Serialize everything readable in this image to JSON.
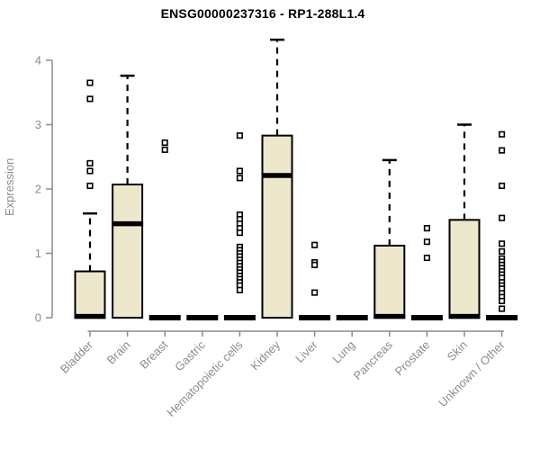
{
  "chart_data": {
    "type": "boxplot",
    "title": "ENSG00000237316 - RP1-288L1.4",
    "xlabel": "",
    "ylabel": "Expression",
    "ylim": [
      0,
      4.35
    ],
    "yticks": [
      0,
      1,
      2,
      3,
      4
    ],
    "grid": false,
    "legend": "none",
    "categories": [
      "Bladder",
      "Brain",
      "Breast",
      "Gastric",
      "Hematopoietic cells",
      "Kidney",
      "Liver",
      "Lung",
      "Pancreas",
      "Prostate",
      "Skin",
      "Unknown / Other"
    ],
    "series": [
      {
        "category": "Bladder",
        "q1": 0,
        "median": 0.02,
        "q3": 0.72,
        "whisker_low": 0,
        "whisker_high": 1.62,
        "outliers": [
          2.05,
          2.28,
          2.4,
          3.4,
          3.65
        ]
      },
      {
        "category": "Brain",
        "q1": 0,
        "median": 1.46,
        "q3": 2.07,
        "whisker_low": 0,
        "whisker_high": 3.76,
        "outliers": []
      },
      {
        "category": "Breast",
        "q1": 0,
        "median": 0,
        "q3": 0,
        "whisker_low": 0,
        "whisker_high": 0,
        "outliers": [
          2.61,
          2.72
        ]
      },
      {
        "category": "Gastric",
        "q1": 0,
        "median": 0,
        "q3": 0,
        "whisker_low": 0,
        "whisker_high": 0,
        "outliers": []
      },
      {
        "category": "Hematopoietic cells",
        "q1": 0,
        "median": 0,
        "q3": 0,
        "whisker_low": 0,
        "whisker_high": 0,
        "outliers": [
          2.83,
          2.28,
          2.17,
          1.6,
          1.53,
          1.46,
          1.39,
          1.32,
          1.1,
          1.05,
          1.0,
          0.95,
          0.9,
          0.85,
          0.8,
          0.75,
          0.7,
          0.65,
          0.6,
          0.55,
          0.5,
          0.43
        ]
      },
      {
        "category": "Kidney",
        "q1": 0,
        "median": 2.21,
        "q3": 2.83,
        "whisker_low": 0,
        "whisker_high": 4.32,
        "outliers": []
      },
      {
        "category": "Liver",
        "q1": 0,
        "median": 0,
        "q3": 0,
        "whisker_low": 0,
        "whisker_high": 0,
        "outliers": [
          1.13,
          0.86,
          0.82,
          0.39
        ]
      },
      {
        "category": "Lung",
        "q1": 0,
        "median": 0,
        "q3": 0,
        "whisker_low": 0,
        "whisker_high": 0,
        "outliers": []
      },
      {
        "category": "Pancreas",
        "q1": 0,
        "median": 0.02,
        "q3": 1.12,
        "whisker_low": 0,
        "whisker_high": 2.45,
        "outliers": []
      },
      {
        "category": "Prostate",
        "q1": 0,
        "median": 0,
        "q3": 0,
        "whisker_low": 0,
        "whisker_high": 0,
        "outliers": [
          1.39,
          1.18,
          0.93
        ]
      },
      {
        "category": "Skin",
        "q1": 0,
        "median": 0.02,
        "q3": 1.52,
        "whisker_low": 0,
        "whisker_high": 3.0,
        "outliers": []
      },
      {
        "category": "Unknown / Other",
        "q1": 0,
        "median": 0,
        "q3": 0,
        "whisker_low": 0,
        "whisker_high": 0,
        "outliers": [
          2.85,
          2.6,
          2.05,
          1.55,
          1.15,
          1.03,
          0.92,
          0.87,
          0.82,
          0.77,
          0.72,
          0.67,
          0.62,
          0.55,
          0.5,
          0.45,
          0.38,
          0.32,
          0.26,
          0.14
        ]
      }
    ],
    "colors": {
      "box_fill": "#EDE7CC",
      "box_border": "#000000",
      "median": "#000000",
      "whisker": "#000000",
      "outlier_stroke": "#000000",
      "outlier_fill": "#FFFFFF",
      "axis": "#8C8C8C",
      "tick_label": "#8C8C8C",
      "title": "#000000",
      "background": "#FFFFFF"
    }
  }
}
